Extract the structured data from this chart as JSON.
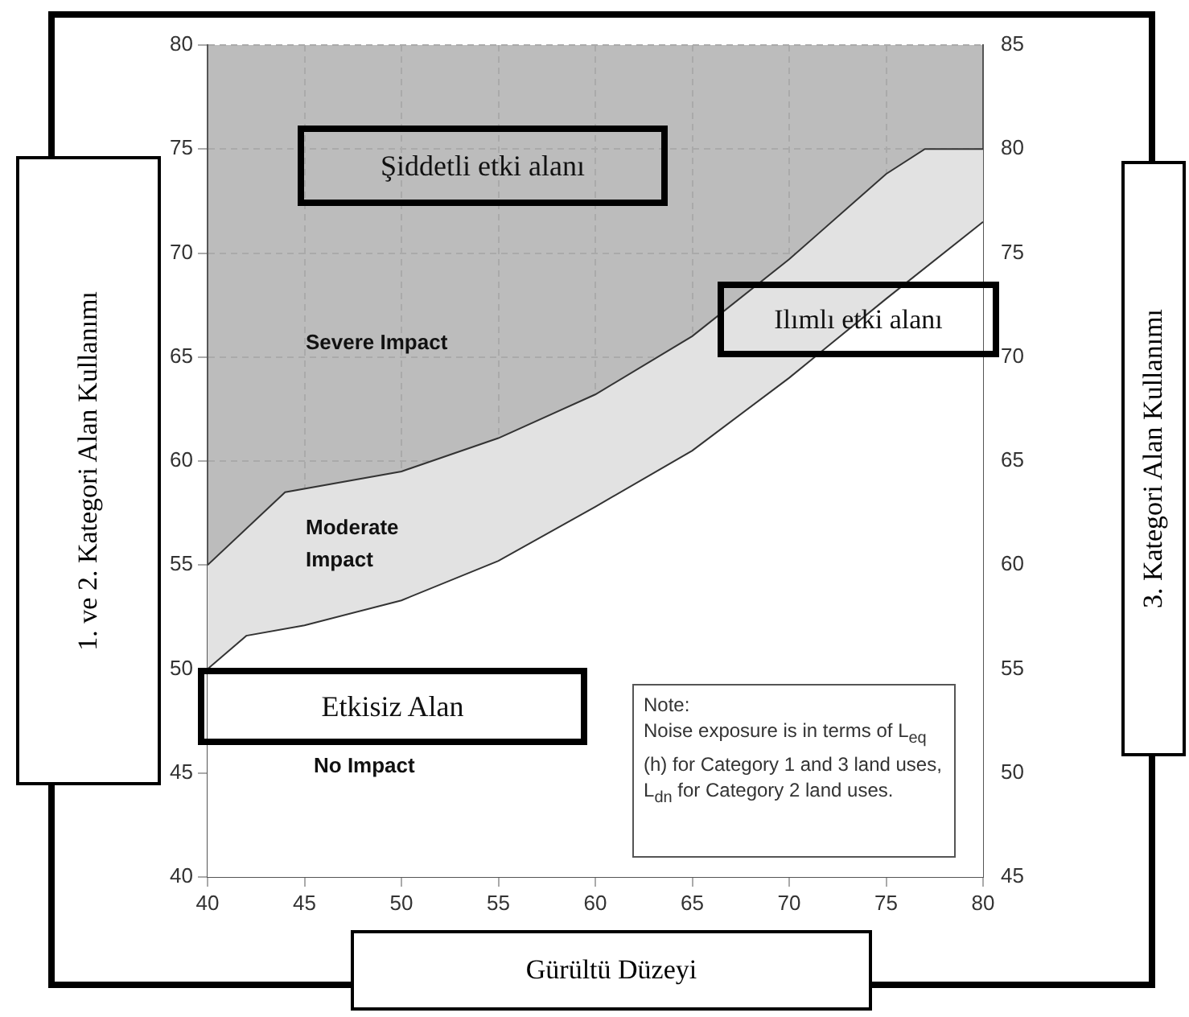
{
  "chart_data": {
    "type": "area",
    "xlabel": "Gürültü Düzeyi",
    "ylabel": "1. ve 2. Kategori Alan Kullanımı",
    "y2label": "3. Kategori Alan Kullanımı",
    "series": [
      {
        "color": "#e2e2e2",
        "x": [
          40,
          44,
          50,
          55,
          60,
          65,
          70,
          75,
          77,
          80
        ],
        "values": [
          55,
          58.5,
          59.5,
          61.1,
          63.2,
          66,
          69.7,
          73.8,
          75,
          75
        ]
      },
      {
        "color": "#ffffff",
        "x": [
          40,
          42,
          45,
          50,
          55,
          60,
          65,
          70,
          75,
          80
        ],
        "values": [
          50,
          51.6,
          52.1,
          53.3,
          55.2,
          57.8,
          60.5,
          64,
          67.8,
          71.5
        ]
      }
    ],
    "xlim": [
      40,
      80
    ],
    "xticks": [
      40,
      45,
      50,
      55,
      60,
      65,
      70,
      75,
      80
    ],
    "ylim": [
      40,
      80
    ],
    "yticks": [
      40,
      45,
      50,
      55,
      60,
      65,
      70,
      75,
      80
    ],
    "y2lim": [
      45,
      85
    ],
    "y2ticks": [
      45,
      50,
      55,
      60,
      65,
      70,
      75,
      80,
      85
    ],
    "grid": true,
    "annotations": [
      "Şiddetli etki alanı",
      "Severe Impact",
      "Ilımlı etki alanı",
      "Moderate Impact",
      "Etkisiz Alan",
      "No Impact",
      "Note:\nNoise exposure is in terms of L$_{eq}$ (h) for Category 1 and 3 land uses, L$_{dn}$ for Category 2 land uses."
    ]
  }
}
